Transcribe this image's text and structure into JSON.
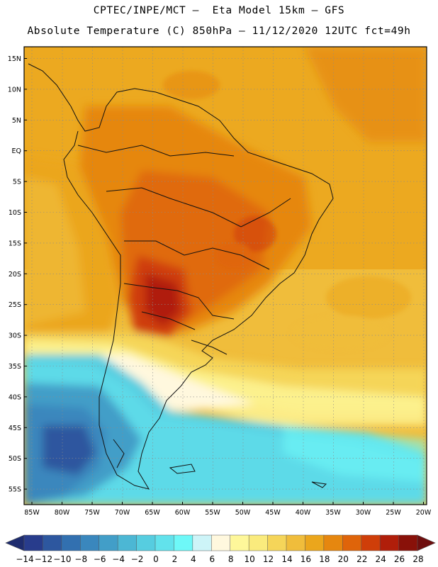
{
  "header": {
    "line1": "CPTEC/INPE/MCT –  Eta Model 15km – GFS",
    "line2": "Absolute Temperature (C) 850hPa – 11/12/2020 12UTC fct=49h"
  },
  "map": {
    "lat_labels": [
      "15N",
      "10N",
      "5N",
      "EQ",
      "5S",
      "10S",
      "15S",
      "20S",
      "25S",
      "30S",
      "35S",
      "40S",
      "45S",
      "50S",
      "55S"
    ],
    "lon_labels": [
      "85W",
      "80W",
      "75W",
      "70W",
      "65W",
      "60W",
      "55W",
      "50W",
      "45W",
      "40W",
      "35W",
      "30W",
      "25W",
      "20W"
    ]
  },
  "colorbar": {
    "colors": [
      "#283c8c",
      "#2d579f",
      "#3270b0",
      "#3a87bd",
      "#429ec8",
      "#4cb7d4",
      "#56cde0",
      "#62e2ec",
      "#6ef8f8",
      "#cdf4f8",
      "#fff8de",
      "#fef79a",
      "#faeb7d",
      "#f5d559",
      "#f0bd3b",
      "#eba61c",
      "#e6870f",
      "#df640a",
      "#cf3e09",
      "#b01e0a",
      "#891109"
    ],
    "low_color": "#1e2c6e",
    "high_color": "#6e0e0e",
    "labels": [
      "-14",
      "-12",
      "-10",
      "-8",
      "-6",
      "-4",
      "-2",
      "0",
      "2",
      "4",
      "6",
      "8",
      "10",
      "12",
      "14",
      "16",
      "18",
      "20",
      "22",
      "24",
      "26",
      "28"
    ]
  }
}
